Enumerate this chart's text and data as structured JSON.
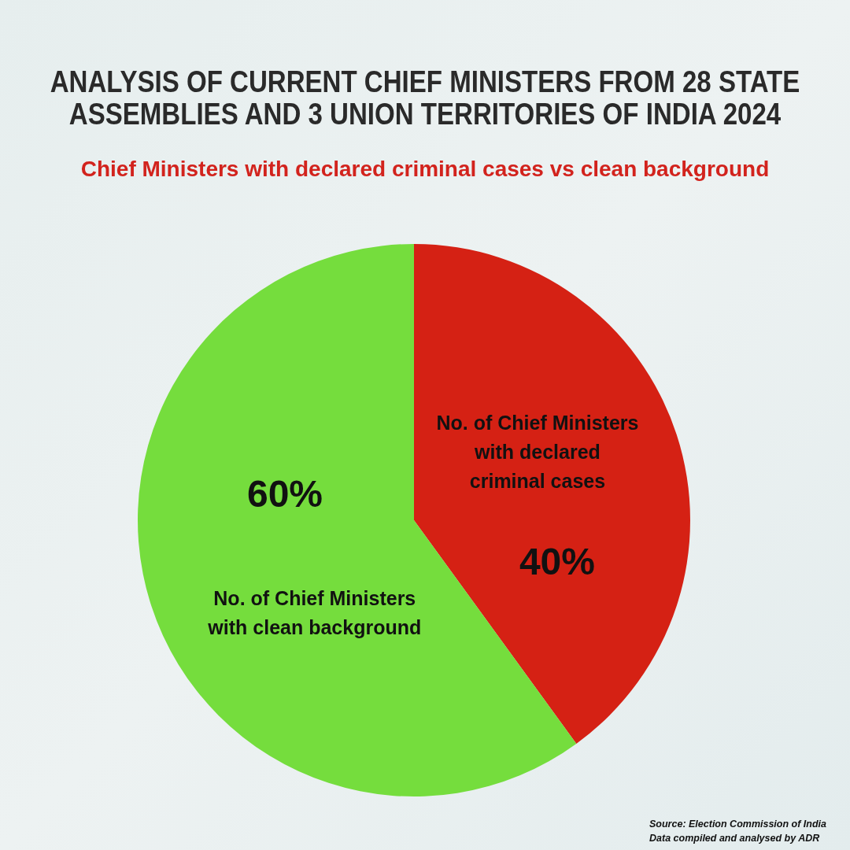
{
  "chart_data": {
    "type": "pie",
    "title": "ANALYSIS OF CURRENT CHIEF MINISTERS FROM 28 STATE ASSEMBLIES AND 3 UNION TERRITORIES OF INDIA 2024",
    "subtitle": "Chief Ministers with declared criminal cases vs clean background",
    "categories": [
      "No. of Chief Ministers with declared criminal cases",
      "No. of Chief Ministers with clean background"
    ],
    "values": [
      40,
      60
    ],
    "value_labels": [
      "40%",
      "60%"
    ],
    "colors": [
      "#d52114",
      "#75dd3d"
    ],
    "annotations": [
      "Source: Election Commission of India",
      "Data compiled and analysed by ADR"
    ]
  }
}
